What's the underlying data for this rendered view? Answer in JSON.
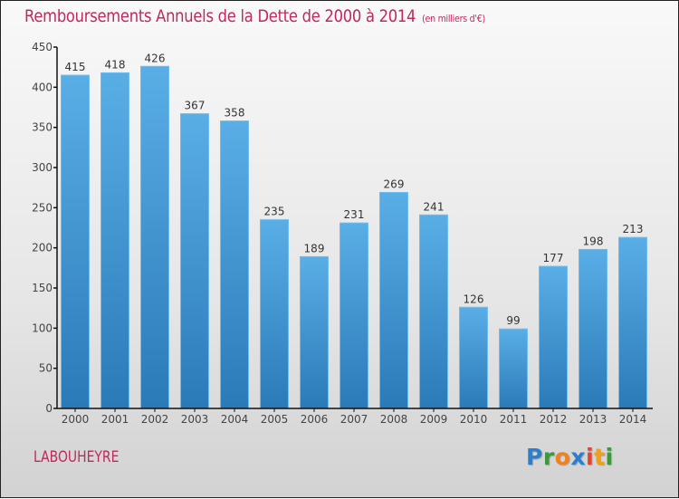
{
  "chart_data": {
    "type": "bar",
    "title": "Remboursements Annuels de la Dette de 2000 à 2014",
    "subtitle": "(en milliers d'€)",
    "xlabel": "",
    "ylabel": "",
    "categories": [
      "2000",
      "2001",
      "2002",
      "2003",
      "2004",
      "2005",
      "2006",
      "2007",
      "2008",
      "2009",
      "2010",
      "2011",
      "2012",
      "2013",
      "2014"
    ],
    "values": [
      415,
      418,
      426,
      367,
      358,
      235,
      189,
      231,
      269,
      241,
      126,
      99,
      177,
      198,
      213
    ],
    "ylim": [
      0,
      450
    ],
    "yticks": [
      0,
      50,
      100,
      150,
      200,
      250,
      300,
      350,
      400,
      450
    ],
    "grid": false,
    "legend": "none",
    "bar_color_top": "#5aaee6",
    "bar_color_bottom": "#2a7ab8",
    "title_color": "#c0285a"
  },
  "footer": {
    "town": "LABOUHEYRE",
    "logo": {
      "letters": [
        {
          "char": "P",
          "color": "#2b7fd0"
        },
        {
          "char": "r",
          "color": "#3a9a3a"
        },
        {
          "char": "o",
          "color": "#f0821e"
        },
        {
          "char": "x",
          "color": "#2b7fd0"
        },
        {
          "char": "i",
          "color": "#e8432c"
        },
        {
          "char": "t",
          "color": "#f0a01e"
        },
        {
          "char": "i",
          "color": "#3a9a3a"
        }
      ]
    }
  }
}
